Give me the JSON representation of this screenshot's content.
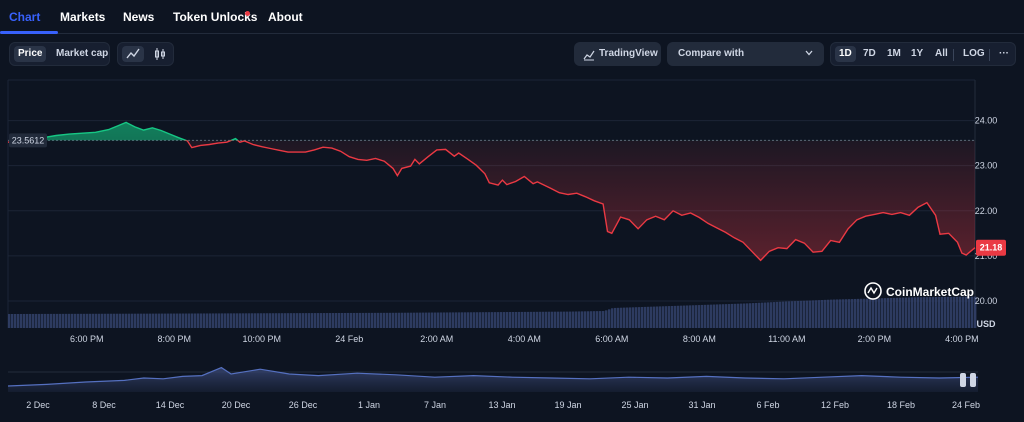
{
  "tabs": [
    {
      "label": "Chart",
      "active": true
    },
    {
      "label": "Markets",
      "active": false
    },
    {
      "label": "News",
      "active": false
    },
    {
      "label": "Token Unlocks",
      "active": false,
      "dot": true
    },
    {
      "label": "About",
      "active": false
    }
  ],
  "toolbar": {
    "price_label": "Price",
    "market_cap_label": "Market cap",
    "line_icon": "line-chart-icon",
    "candle_icon": "candlestick-icon",
    "tradingview_label": "TradingView",
    "tradingview_icon": "tradingview-icon",
    "compare_label": "Compare with",
    "ranges": [
      "1D",
      "7D",
      "1M",
      "1Y",
      "All"
    ],
    "selected_range": "1D",
    "log_label": "LOG",
    "more_label": "···"
  },
  "watermark": "CoinMarketCap",
  "colors": {
    "up": "#16c784",
    "down": "#ea3943",
    "accent": "#3861fb",
    "volume": "#3b4a7a"
  },
  "chart_data": {
    "type": "line",
    "open_price": 23.5612,
    "open_price_label": "23.5612",
    "last_price_label": "21.18",
    "y_axis": {
      "ticks": [
        24.0,
        23.0,
        22.0,
        21.0,
        20.0
      ],
      "tick_labels": [
        "24.00",
        "23.00",
        "22.00",
        "21.00",
        "20.00"
      ],
      "unit_label": "USD",
      "range": [
        19.4,
        24.9
      ]
    },
    "x_axis": {
      "ticks": [
        1.0,
        3.0,
        5.0,
        7.0,
        9.0,
        11.0,
        13.0,
        15.0,
        17.0,
        19.0,
        21.0
      ],
      "tick_labels": [
        "6:00 PM",
        "8:00 PM",
        "10:00 PM",
        "24 Feb",
        "2:00 AM",
        "4:00 AM",
        "6:00 AM",
        "8:00 AM",
        "11:00 AM",
        "2:00 PM",
        "4:00 PM"
      ],
      "range": [
        -0.8,
        21.3
      ]
    },
    "price_series": [
      [
        -0.8,
        23.52
      ],
      [
        -0.3,
        23.56
      ],
      [
        0.0,
        23.62
      ],
      [
        0.3,
        23.67
      ],
      [
        0.6,
        23.7
      ],
      [
        0.9,
        23.72
      ],
      [
        1.2,
        23.74
      ],
      [
        1.5,
        23.8
      ],
      [
        1.7,
        23.88
      ],
      [
        1.9,
        23.96
      ],
      [
        2.1,
        23.86
      ],
      [
        2.3,
        23.79
      ],
      [
        2.5,
        23.84
      ],
      [
        2.7,
        23.78
      ],
      [
        2.9,
        23.7
      ],
      [
        3.1,
        23.62
      ],
      [
        3.3,
        23.55
      ],
      [
        3.4,
        23.4
      ],
      [
        3.6,
        23.45
      ],
      [
        3.8,
        23.47
      ],
      [
        4.0,
        23.5
      ],
      [
        4.2,
        23.52
      ],
      [
        4.4,
        23.6
      ],
      [
        4.5,
        23.52
      ],
      [
        4.6,
        23.55
      ],
      [
        4.8,
        23.47
      ],
      [
        5.0,
        23.42
      ],
      [
        5.2,
        23.38
      ],
      [
        5.4,
        23.34
      ],
      [
        5.6,
        23.3
      ],
      [
        5.8,
        23.3
      ],
      [
        6.0,
        23.3
      ],
      [
        6.2,
        23.35
      ],
      [
        6.4,
        23.41
      ],
      [
        6.6,
        23.39
      ],
      [
        6.8,
        23.32
      ],
      [
        7.0,
        23.2
      ],
      [
        7.2,
        23.14
      ],
      [
        7.4,
        23.12
      ],
      [
        7.6,
        23.16
      ],
      [
        7.8,
        23.1
      ],
      [
        8.0,
        22.94
      ],
      [
        8.1,
        22.78
      ],
      [
        8.2,
        22.94
      ],
      [
        8.4,
        22.99
      ],
      [
        8.5,
        23.14
      ],
      [
        8.6,
        23.04
      ],
      [
        8.8,
        23.2
      ],
      [
        9.0,
        23.35
      ],
      [
        9.2,
        23.36
      ],
      [
        9.4,
        23.21
      ],
      [
        9.5,
        23.28
      ],
      [
        9.7,
        23.15
      ],
      [
        9.9,
        23.01
      ],
      [
        10.1,
        22.82
      ],
      [
        10.2,
        22.62
      ],
      [
        10.4,
        22.57
      ],
      [
        10.5,
        22.68
      ],
      [
        10.6,
        22.58
      ],
      [
        10.8,
        22.65
      ],
      [
        11.0,
        22.76
      ],
      [
        11.2,
        22.6
      ],
      [
        11.3,
        22.64
      ],
      [
        11.6,
        22.5
      ],
      [
        11.8,
        22.4
      ],
      [
        12.0,
        22.36
      ],
      [
        12.2,
        22.39
      ],
      [
        12.4,
        22.31
      ],
      [
        12.6,
        22.22
      ],
      [
        12.8,
        22.15
      ],
      [
        12.9,
        21.54
      ],
      [
        13.0,
        21.5
      ],
      [
        13.2,
        21.86
      ],
      [
        13.4,
        21.8
      ],
      [
        13.6,
        21.6
      ],
      [
        13.8,
        21.8
      ],
      [
        14.0,
        21.88
      ],
      [
        14.2,
        21.8
      ],
      [
        14.4,
        22.0
      ],
      [
        14.6,
        21.9
      ],
      [
        14.8,
        21.95
      ],
      [
        15.0,
        21.85
      ],
      [
        15.2,
        21.72
      ],
      [
        15.4,
        21.62
      ],
      [
        15.6,
        21.52
      ],
      [
        15.8,
        21.4
      ],
      [
        16.0,
        21.3
      ],
      [
        16.2,
        21.1
      ],
      [
        16.4,
        20.9
      ],
      [
        16.6,
        21.1
      ],
      [
        16.8,
        21.18
      ],
      [
        17.0,
        21.16
      ],
      [
        17.2,
        21.36
      ],
      [
        17.4,
        21.28
      ],
      [
        17.6,
        21.08
      ],
      [
        17.8,
        21.1
      ],
      [
        18.0,
        21.34
      ],
      [
        18.2,
        21.3
      ],
      [
        18.4,
        21.6
      ],
      [
        18.6,
        21.8
      ],
      [
        18.8,
        21.88
      ],
      [
        19.0,
        21.92
      ],
      [
        19.2,
        21.96
      ],
      [
        19.4,
        21.92
      ],
      [
        19.6,
        21.96
      ],
      [
        19.8,
        21.9
      ],
      [
        20.0,
        22.08
      ],
      [
        20.2,
        22.18
      ],
      [
        20.4,
        21.9
      ],
      [
        20.5,
        21.48
      ],
      [
        20.7,
        21.5
      ],
      [
        20.9,
        21.3
      ],
      [
        21.0,
        21.06
      ],
      [
        21.1,
        21.02
      ],
      [
        21.2,
        21.1
      ],
      [
        21.3,
        21.18
      ]
    ],
    "volume_series": [
      [
        -0.8,
        20
      ],
      [
        2.0,
        21
      ],
      [
        4.0,
        22
      ],
      [
        6.0,
        23
      ],
      [
        8.0,
        24
      ],
      [
        10.0,
        26
      ],
      [
        12.0,
        28
      ],
      [
        12.8,
        30
      ],
      [
        13.0,
        40
      ],
      [
        14.0,
        45
      ],
      [
        15.0,
        50
      ],
      [
        16.0,
        55
      ],
      [
        17.0,
        62
      ],
      [
        18.0,
        68
      ],
      [
        19.0,
        72
      ],
      [
        20.0,
        76
      ],
      [
        21.3,
        78
      ]
    ],
    "volume_range": [
      0,
      100
    ]
  },
  "navigator": {
    "x_labels": [
      "2 Dec",
      "8 Dec",
      "14 Dec",
      "20 Dec",
      "26 Dec",
      "1 Jan",
      "7 Jan",
      "13 Jan",
      "19 Jan",
      "25 Jan",
      "31 Jan",
      "6 Feb",
      "12 Feb",
      "18 Feb",
      "24 Feb"
    ],
    "series": [
      [
        0,
        21.0
      ],
      [
        4,
        21.4
      ],
      [
        8,
        22.0
      ],
      [
        12,
        22.4
      ],
      [
        14,
        23.0
      ],
      [
        16,
        22.8
      ],
      [
        18,
        23.4
      ],
      [
        20,
        23.6
      ],
      [
        22,
        25.6
      ],
      [
        23,
        24.0
      ],
      [
        26,
        25.2
      ],
      [
        29,
        24.0
      ],
      [
        32,
        23.6
      ],
      [
        36,
        24.2
      ],
      [
        40,
        23.8
      ],
      [
        44,
        23.2
      ],
      [
        48,
        23.6
      ],
      [
        52,
        23.2
      ],
      [
        56,
        23.0
      ],
      [
        60,
        22.8
      ],
      [
        64,
        23.2
      ],
      [
        68,
        23.0
      ],
      [
        72,
        23.4
      ],
      [
        76,
        23.0
      ],
      [
        80,
        22.8
      ],
      [
        84,
        23.2
      ],
      [
        88,
        23.6
      ],
      [
        92,
        23.2
      ],
      [
        96,
        23.0
      ],
      [
        100,
        23.2
      ]
    ],
    "y_range": [
      19.5,
      26.5
    ],
    "x_range": [
      0,
      100
    ]
  }
}
